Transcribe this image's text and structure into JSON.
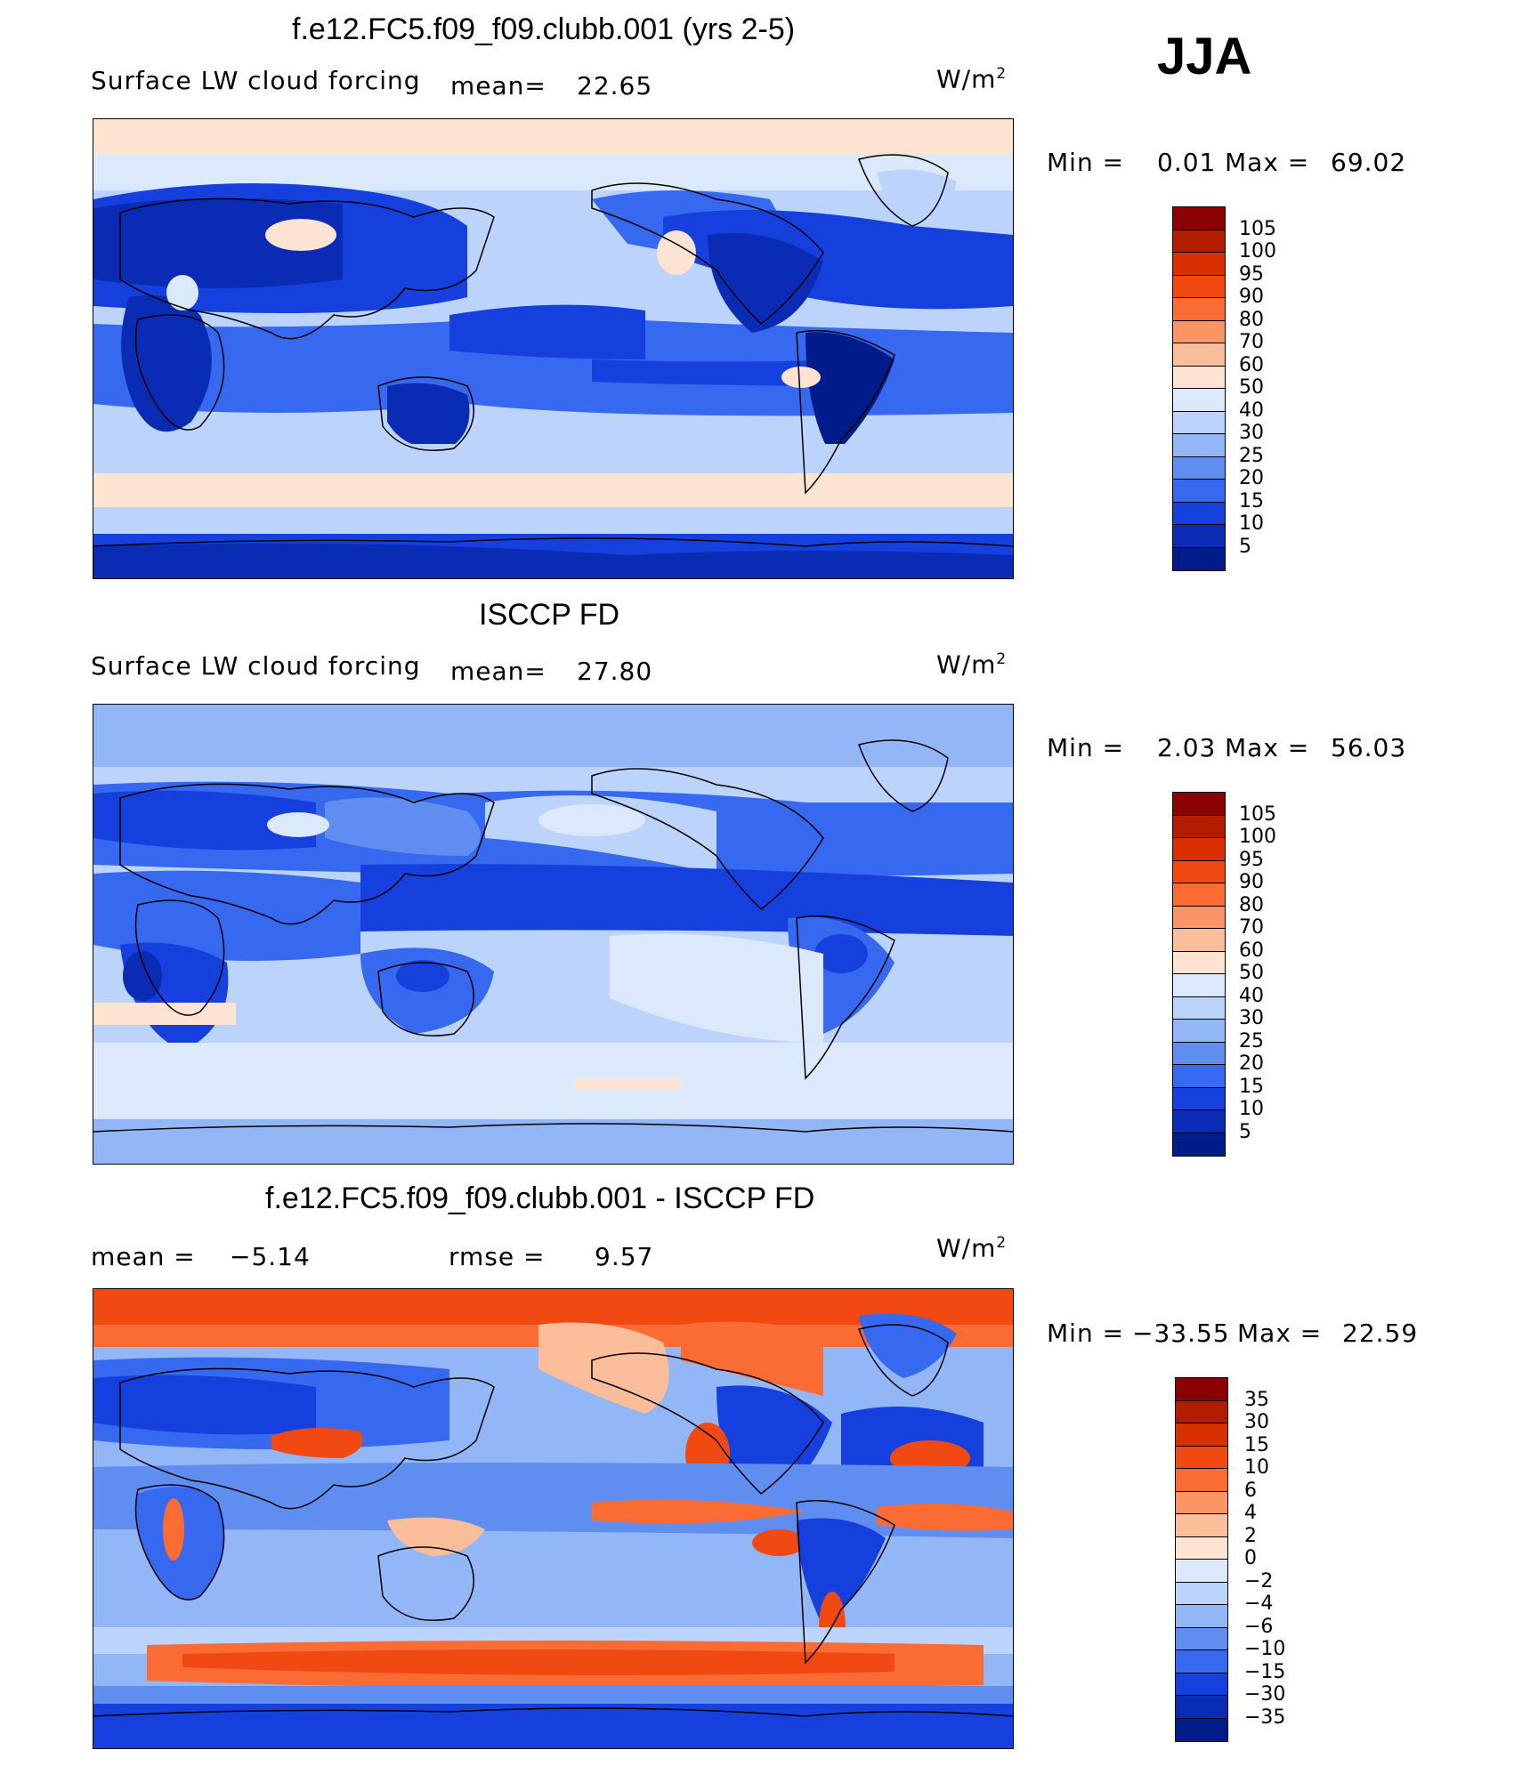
{
  "season": "JJA",
  "panels": [
    {
      "title": "f.e12.FC5.f09_f09.clubb.001 (yrs 2-5)",
      "left_label": "Surface LW cloud forcing",
      "mean_label": "mean=",
      "mean_value": "22.65",
      "units": "W/m",
      "units_sup": "2",
      "min_label": "Min =",
      "min_value": "0.01",
      "max_label": "Max =",
      "max_value": "69.02",
      "levels": [
        "105",
        "100",
        "95",
        "90",
        "80",
        "70",
        "60",
        "50",
        "40",
        "30",
        "25",
        "20",
        "15",
        "10",
        "5"
      ],
      "colors": [
        "#8b0000",
        "#b21d00",
        "#d93000",
        "#f04a12",
        "#fa6c33",
        "#fb9566",
        "#fbbd9a",
        "#fde4d2",
        "#dce8fb",
        "#bcd3fb",
        "#93b6f6",
        "#5f8ef0",
        "#3668f0",
        "#1540dd",
        "#0a2cb4",
        "#001b8a"
      ]
    },
    {
      "title": "ISCCP FD",
      "left_label": "Surface LW cloud forcing",
      "mean_label": "mean=",
      "mean_value": "27.80",
      "units": "W/m",
      "units_sup": "2",
      "min_label": "Min =",
      "min_value": "2.03",
      "max_label": "Max =",
      "max_value": "56.03",
      "levels": [
        "105",
        "100",
        "95",
        "90",
        "80",
        "70",
        "60",
        "50",
        "40",
        "30",
        "25",
        "20",
        "15",
        "10",
        "5"
      ],
      "colors": [
        "#8b0000",
        "#b21d00",
        "#d93000",
        "#f04a12",
        "#fa6c33",
        "#fb9566",
        "#fbbd9a",
        "#fde4d2",
        "#dce8fb",
        "#bcd3fb",
        "#93b6f6",
        "#5f8ef0",
        "#3668f0",
        "#1540dd",
        "#0a2cb4",
        "#001b8a"
      ]
    },
    {
      "title": "f.e12.FC5.f09_f09.clubb.001 - ISCCP FD",
      "mean_label": "mean =",
      "mean_value": "−5.14",
      "rmse_label": "rmse =",
      "rmse_value": "9.57",
      "units": "W/m",
      "units_sup": "2",
      "min_label": "Min =",
      "min_value": "−33.55",
      "max_label": "Max =",
      "max_value": "22.59",
      "levels": [
        "35",
        "30",
        "15",
        "10",
        "6",
        "4",
        "2",
        "0",
        "−2",
        "−4",
        "−6",
        "−10",
        "−15",
        "−30",
        "−35"
      ],
      "colors": [
        "#8b0000",
        "#b21d00",
        "#d93000",
        "#f04a12",
        "#fa6c33",
        "#fb9566",
        "#fbbd9a",
        "#fde4d2",
        "#dce8fb",
        "#bcd3fb",
        "#93b6f6",
        "#5f8ef0",
        "#3668f0",
        "#1540dd",
        "#0a2cb4",
        "#001b8a"
      ]
    }
  ]
}
